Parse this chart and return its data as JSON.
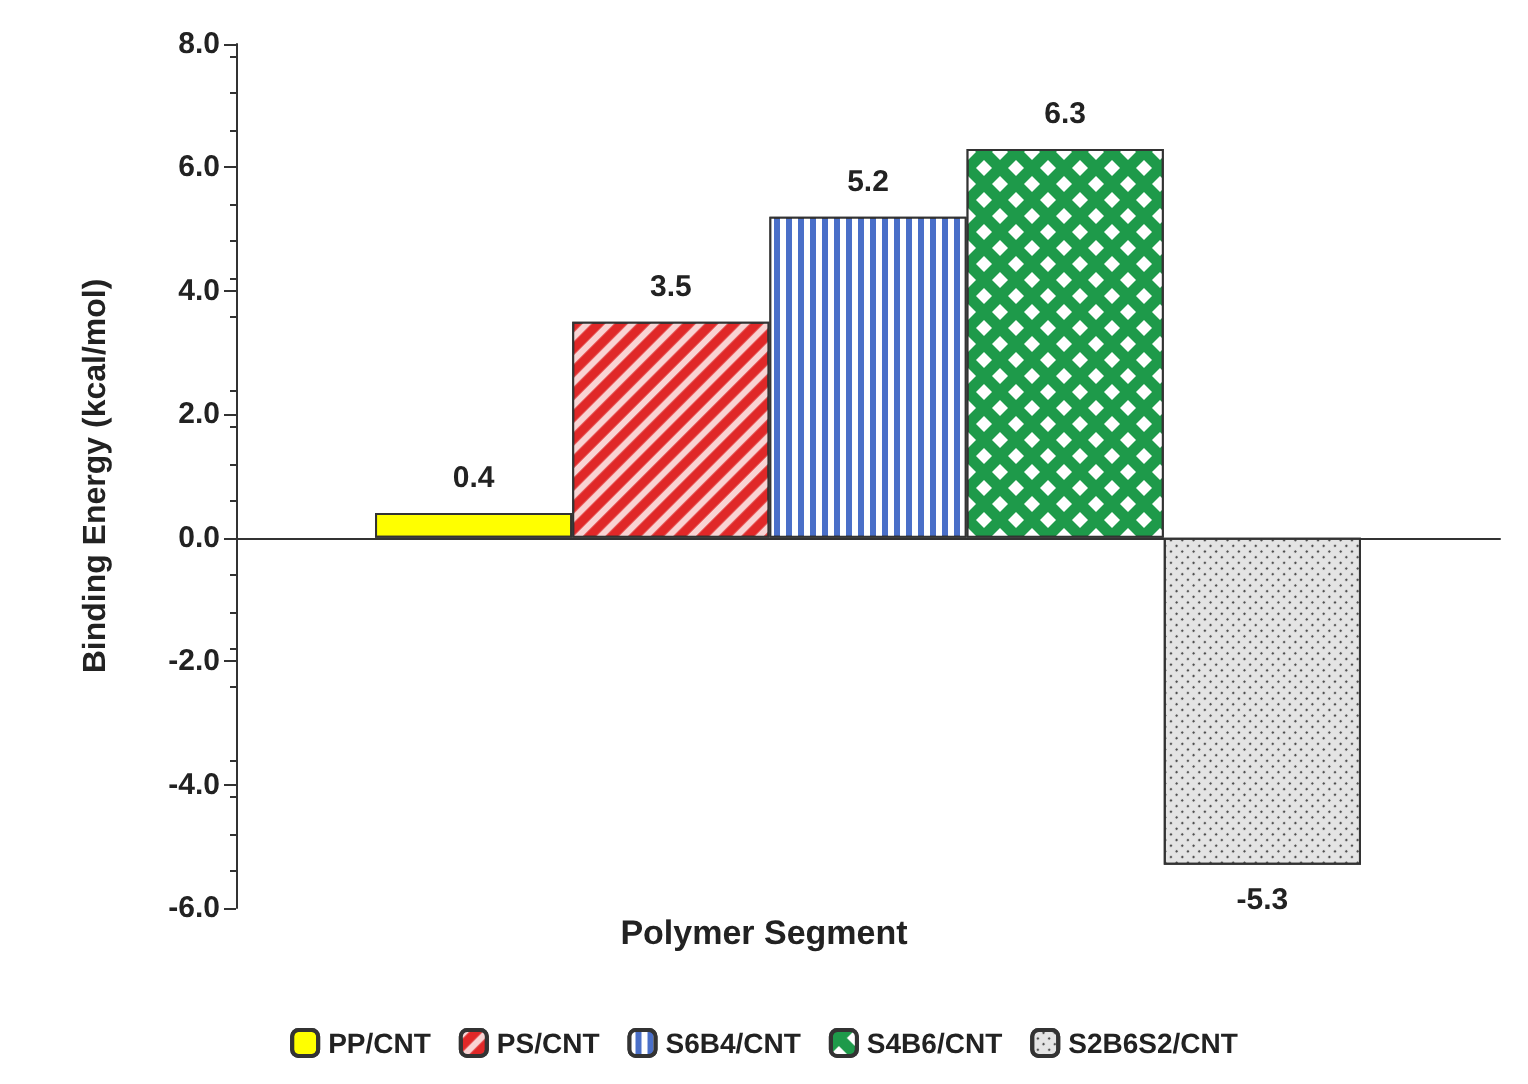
{
  "chart_data": {
    "type": "bar",
    "xlabel": "Polymer Segment",
    "ylabel": "Binding Energy (kcal/mol)",
    "categories": [
      null
    ],
    "series": [
      {
        "name": "PP/CNT",
        "color": "#ffff00",
        "values": [
          0.4
        ]
      },
      {
        "name": "PS/CNT",
        "color": "#e02828",
        "values": [
          3.5
        ]
      },
      {
        "name": "S6B4/CNT",
        "color": "#4a6fc8",
        "values": [
          5.2
        ]
      },
      {
        "name": "S4B6/CNT",
        "color": "#1e9a4a",
        "values": [
          6.3
        ]
      },
      {
        "name": "S2B6S2/CNT",
        "color": "#e4e4e4",
        "values": [
          -5.3
        ]
      }
    ],
    "ylim": [
      -6,
      8
    ],
    "yticks": [
      {
        "value": -6,
        "label": "-6.0"
      },
      {
        "value": -4,
        "label": "-4.0"
      },
      {
        "value": -2,
        "label": "-2.0"
      },
      {
        "value": 0,
        "label": "0.0"
      },
      {
        "value": 2,
        "label": "2.0"
      },
      {
        "value": 4,
        "label": "4.0"
      },
      {
        "value": 6,
        "label": "6.0"
      },
      {
        "value": 8,
        "label": "8.0"
      }
    ],
    "data_labels": true,
    "legend": "bottom",
    "tick_labels": "y"
  }
}
